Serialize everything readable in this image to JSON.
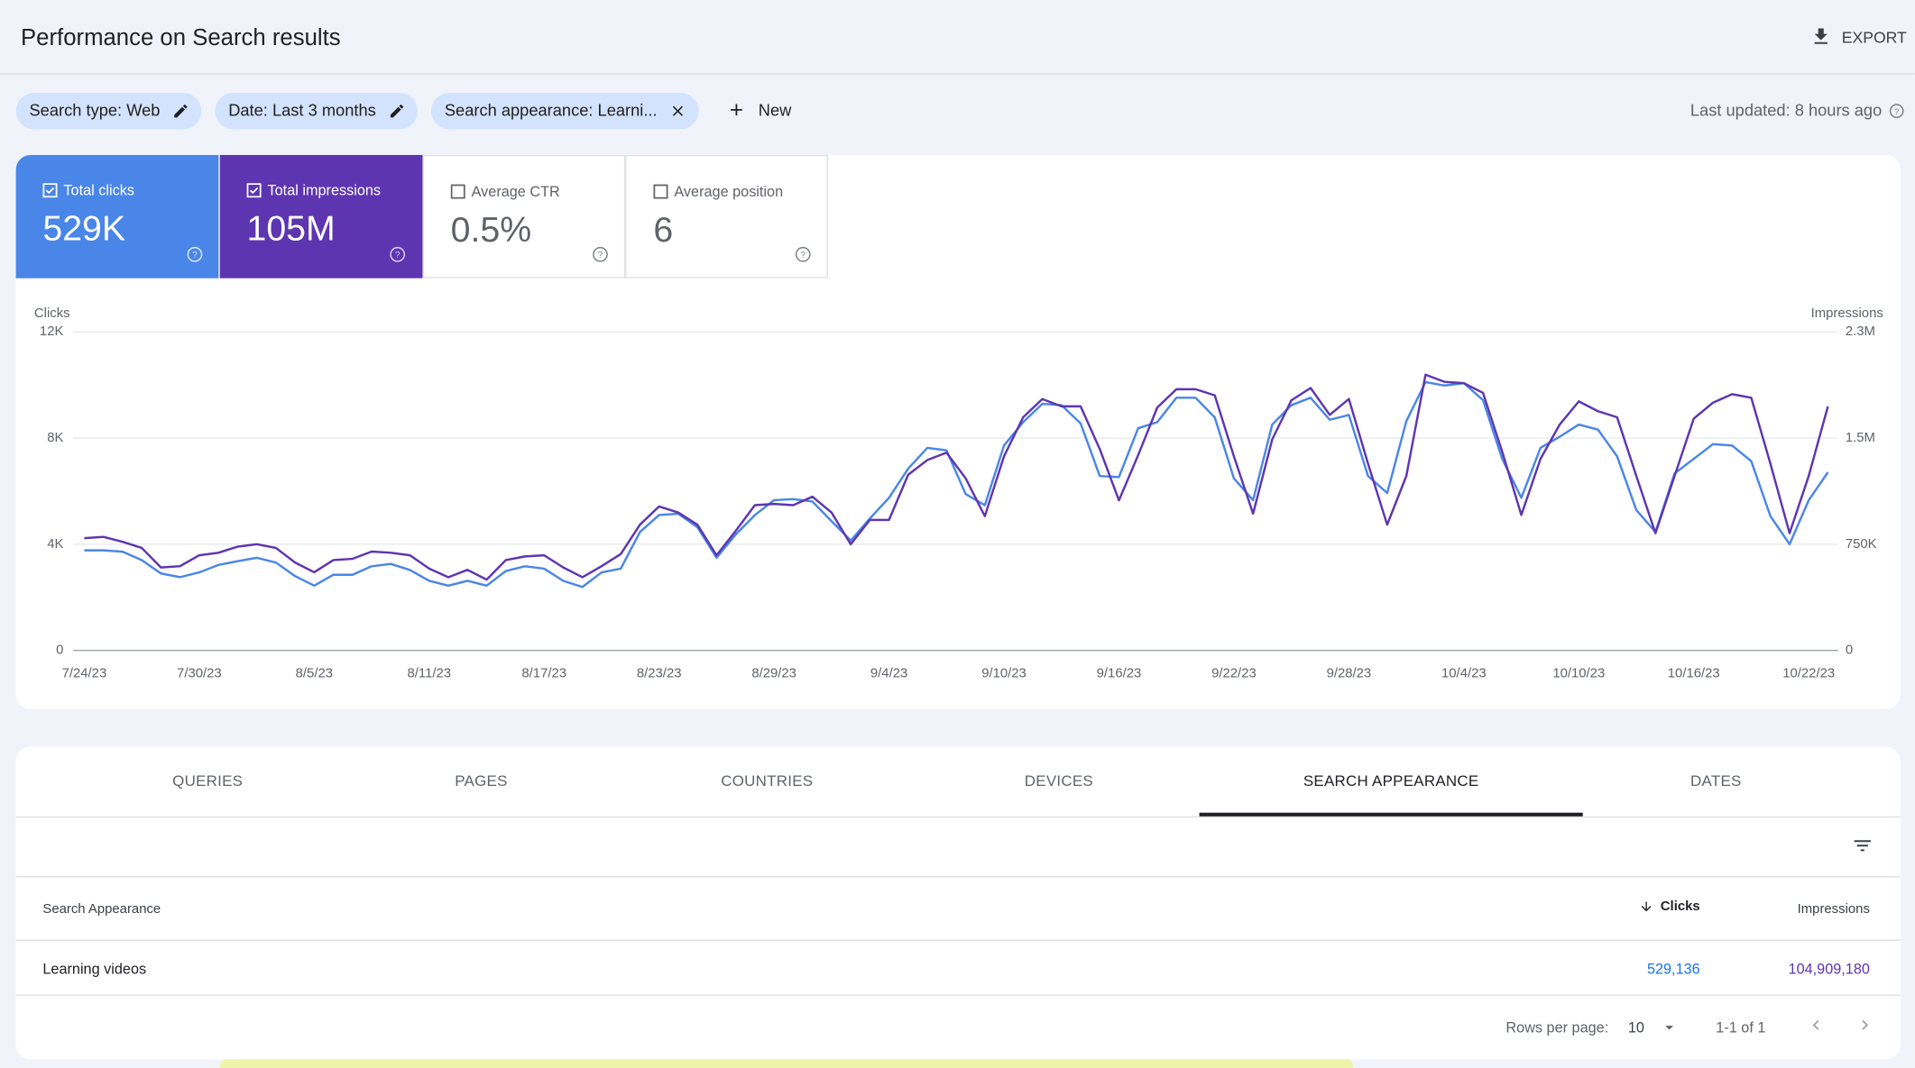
{
  "header": {
    "title": "Performance on Search results",
    "export": "EXPORT"
  },
  "filters": {
    "chips": [
      "Search type: Web",
      "Date: Last 3 months",
      "Search appearance: Learni..."
    ],
    "new": "New",
    "last_updated": "Last updated: 8 hours ago"
  },
  "metrics": [
    {
      "label": "Total clicks",
      "value": "529K"
    },
    {
      "label": "Total impressions",
      "value": "105M"
    },
    {
      "label": "Average CTR",
      "value": "0.5%"
    },
    {
      "label": "Average position",
      "value": "6"
    }
  ],
  "chart_data": {
    "type": "line",
    "y_label": "Clicks",
    "y2_label": "Impressions",
    "categories": [
      "7/24/23",
      null,
      null,
      null,
      null,
      null,
      "7/30/23",
      null,
      null,
      null,
      null,
      null,
      "8/5/23",
      null,
      null,
      null,
      null,
      null,
      "8/11/23",
      null,
      null,
      null,
      null,
      null,
      "8/17/23",
      null,
      null,
      null,
      null,
      null,
      "8/23/23",
      null,
      null,
      null,
      null,
      null,
      "8/29/23",
      null,
      null,
      null,
      null,
      null,
      "9/4/23",
      null,
      null,
      null,
      null,
      null,
      "9/10/23",
      null,
      null,
      null,
      null,
      null,
      "9/16/23",
      null,
      null,
      null,
      null,
      null,
      "9/22/23",
      null,
      null,
      null,
      null,
      null,
      "9/28/23",
      null,
      null,
      null,
      null,
      null,
      "10/4/23",
      null,
      null,
      null,
      null,
      null,
      "10/10/23",
      null,
      null,
      null,
      null,
      null,
      "10/16/23",
      null,
      null,
      null,
      null,
      null,
      "10/22/23",
      null
    ],
    "series": [
      {
        "name": "Clicks",
        "color": "#4a86e8",
        "axis": "y",
        "values": [
          3770,
          3770,
          3720,
          3400,
          2900,
          2760,
          2940,
          3220,
          3360,
          3490,
          3310,
          2800,
          2440,
          2850,
          2850,
          3170,
          3260,
          3030,
          2620,
          2440,
          2620,
          2440,
          2990,
          3170,
          3080,
          2620,
          2390,
          2940,
          3080,
          4460,
          5100,
          5150,
          4640,
          3490,
          4370,
          5100,
          5660,
          5700,
          5610,
          4870,
          4140,
          4970,
          5750,
          6850,
          7630,
          7540,
          5890,
          5470,
          7720,
          8600,
          9290,
          9240,
          8550,
          6570,
          6530,
          8370,
          8600,
          9520,
          9520,
          8780,
          6480,
          5660,
          8510,
          9240,
          9520,
          8690,
          8870,
          6570,
          5930,
          8640,
          10110,
          9980,
          10070,
          9430,
          7220,
          5750,
          7630,
          8050,
          8510,
          8320,
          7310,
          5290,
          4460,
          6670,
          7220,
          7770,
          7720,
          7130,
          5060,
          4000,
          5660,
          6710
        ]
      },
      {
        "name": "Impressions",
        "color": "#5e35b1",
        "axis": "y2",
        "values": [
          793000,
          802000,
          767000,
          724000,
          586000,
          595000,
          672000,
          690000,
          733000,
          750000,
          724000,
          621000,
          552000,
          638000,
          647000,
          698000,
          690000,
          672000,
          578000,
          517000,
          569000,
          500000,
          638000,
          664000,
          672000,
          586000,
          517000,
          595000,
          681000,
          888000,
          1017000,
          974000,
          888000,
          672000,
          845000,
          1026000,
          1035000,
          1026000,
          1086000,
          974000,
          750000,
          922000,
          922000,
          1241000,
          1345000,
          1397000,
          1216000,
          948000,
          1371000,
          1647000,
          1776000,
          1724000,
          1724000,
          1422000,
          1060000,
          1379000,
          1716000,
          1845000,
          1845000,
          1802000,
          1371000,
          966000,
          1491000,
          1767000,
          1854000,
          1664000,
          1776000,
          1319000,
          888000,
          1233000,
          1948000,
          1897000,
          1888000,
          1819000,
          1405000,
          957000,
          1353000,
          1595000,
          1759000,
          1690000,
          1647000,
          1233000,
          828000,
          1233000,
          1638000,
          1750000,
          1810000,
          1785000,
          1319000,
          828000,
          1233000,
          1724000
        ]
      }
    ],
    "ylim": [
      0,
      12000
    ],
    "yticks": [
      0,
      {
        "value": 4000,
        "label": "4K"
      },
      {
        "value": 8000,
        "label": "8K"
      },
      {
        "value": 12000,
        "label": "12K"
      }
    ],
    "y2lim": [
      0,
      2250000
    ],
    "y2ticks": [
      0,
      {
        "value": 750000,
        "label": "750K"
      },
      {
        "value": 1500000,
        "label": "1.5M"
      },
      {
        "value": 2250000,
        "label": "2.3M"
      }
    ],
    "grid": true
  },
  "tabs": {
    "items": [
      "QUERIES",
      "PAGES",
      "COUNTRIES",
      "DEVICES",
      "SEARCH APPEARANCE",
      "DATES"
    ],
    "active": 4
  },
  "table": {
    "columns": [
      "Search Appearance",
      "Clicks",
      "Impressions"
    ],
    "rows": [
      [
        "Learning videos",
        "529,136",
        "104,909,180"
      ]
    ]
  },
  "pagination": {
    "rows_per_page_label": "Rows per page:",
    "rows_per_page": "10",
    "range": "1-1 of 1"
  }
}
